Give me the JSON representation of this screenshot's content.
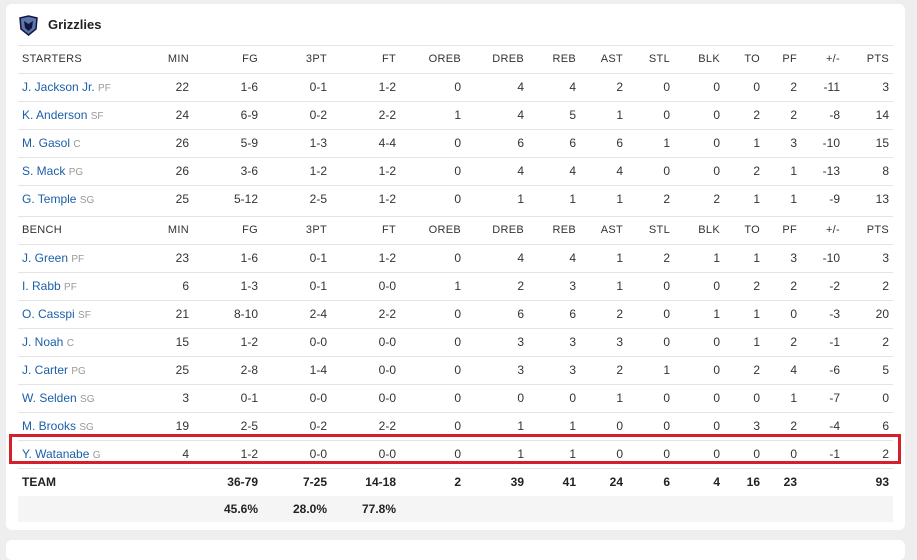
{
  "header": {
    "title": "Grizzlies"
  },
  "columns": [
    "MIN",
    "FG",
    "3PT",
    "FT",
    "OREB",
    "DREB",
    "REB",
    "AST",
    "STL",
    "BLK",
    "TO",
    "PF",
    "+/-",
    "PTS"
  ],
  "starters": {
    "label": "STARTERS",
    "rows": [
      {
        "name": "J. Jackson Jr.",
        "pos": "PF",
        "stats": [
          22,
          "1-6",
          "0-1",
          "1-2",
          0,
          4,
          4,
          2,
          0,
          0,
          0,
          2,
          -11,
          3
        ]
      },
      {
        "name": "K. Anderson",
        "pos": "SF",
        "stats": [
          24,
          "6-9",
          "0-2",
          "2-2",
          1,
          4,
          5,
          1,
          0,
          0,
          2,
          2,
          -8,
          14
        ]
      },
      {
        "name": "M. Gasol",
        "pos": "C",
        "stats": [
          26,
          "5-9",
          "1-3",
          "4-4",
          0,
          6,
          6,
          6,
          1,
          0,
          1,
          3,
          -10,
          15
        ]
      },
      {
        "name": "S. Mack",
        "pos": "PG",
        "stats": [
          26,
          "3-6",
          "1-2",
          "1-2",
          0,
          4,
          4,
          4,
          0,
          0,
          2,
          1,
          -13,
          8
        ]
      },
      {
        "name": "G. Temple",
        "pos": "SG",
        "stats": [
          25,
          "5-12",
          "2-5",
          "1-2",
          0,
          1,
          1,
          1,
          2,
          2,
          1,
          1,
          -9,
          13
        ]
      }
    ]
  },
  "bench": {
    "label": "BENCH",
    "rows": [
      {
        "name": "J. Green",
        "pos": "PF",
        "stats": [
          23,
          "1-6",
          "0-1",
          "1-2",
          0,
          4,
          4,
          1,
          2,
          1,
          1,
          3,
          -10,
          3
        ]
      },
      {
        "name": "I. Rabb",
        "pos": "PF",
        "stats": [
          6,
          "1-3",
          "0-1",
          "0-0",
          1,
          2,
          3,
          1,
          0,
          0,
          2,
          2,
          -2,
          2
        ]
      },
      {
        "name": "O. Casspi",
        "pos": "SF",
        "stats": [
          21,
          "8-10",
          "2-4",
          "2-2",
          0,
          6,
          6,
          2,
          0,
          1,
          1,
          0,
          -3,
          20
        ]
      },
      {
        "name": "J. Noah",
        "pos": "C",
        "stats": [
          15,
          "1-2",
          "0-0",
          "0-0",
          0,
          3,
          3,
          3,
          0,
          0,
          1,
          2,
          -1,
          2
        ]
      },
      {
        "name": "J. Carter",
        "pos": "PG",
        "stats": [
          25,
          "2-8",
          "1-4",
          "0-0",
          0,
          3,
          3,
          2,
          1,
          0,
          2,
          4,
          -6,
          5
        ]
      },
      {
        "name": "W. Selden",
        "pos": "SG",
        "stats": [
          3,
          "0-1",
          "0-0",
          "0-0",
          0,
          0,
          0,
          1,
          0,
          0,
          0,
          1,
          -7,
          0
        ]
      },
      {
        "name": "M. Brooks",
        "pos": "SG",
        "stats": [
          19,
          "2-5",
          "0-2",
          "2-2",
          0,
          1,
          1,
          0,
          0,
          0,
          3,
          2,
          -4,
          6
        ]
      },
      {
        "name": "Y. Watanabe",
        "pos": "G",
        "stats": [
          4,
          "1-2",
          "0-0",
          "0-0",
          0,
          1,
          1,
          0,
          0,
          0,
          0,
          0,
          -1,
          2
        ]
      }
    ]
  },
  "team": {
    "label": "TEAM",
    "stats": [
      null,
      "36-79",
      "7-25",
      "14-18",
      2,
      39,
      41,
      24,
      6,
      4,
      16,
      23,
      null,
      93
    ],
    "percentages": [
      null,
      "45.6%",
      "28.0%",
      "77.8%",
      null,
      null,
      null,
      null,
      null,
      null,
      null,
      null,
      null,
      null
    ]
  }
}
